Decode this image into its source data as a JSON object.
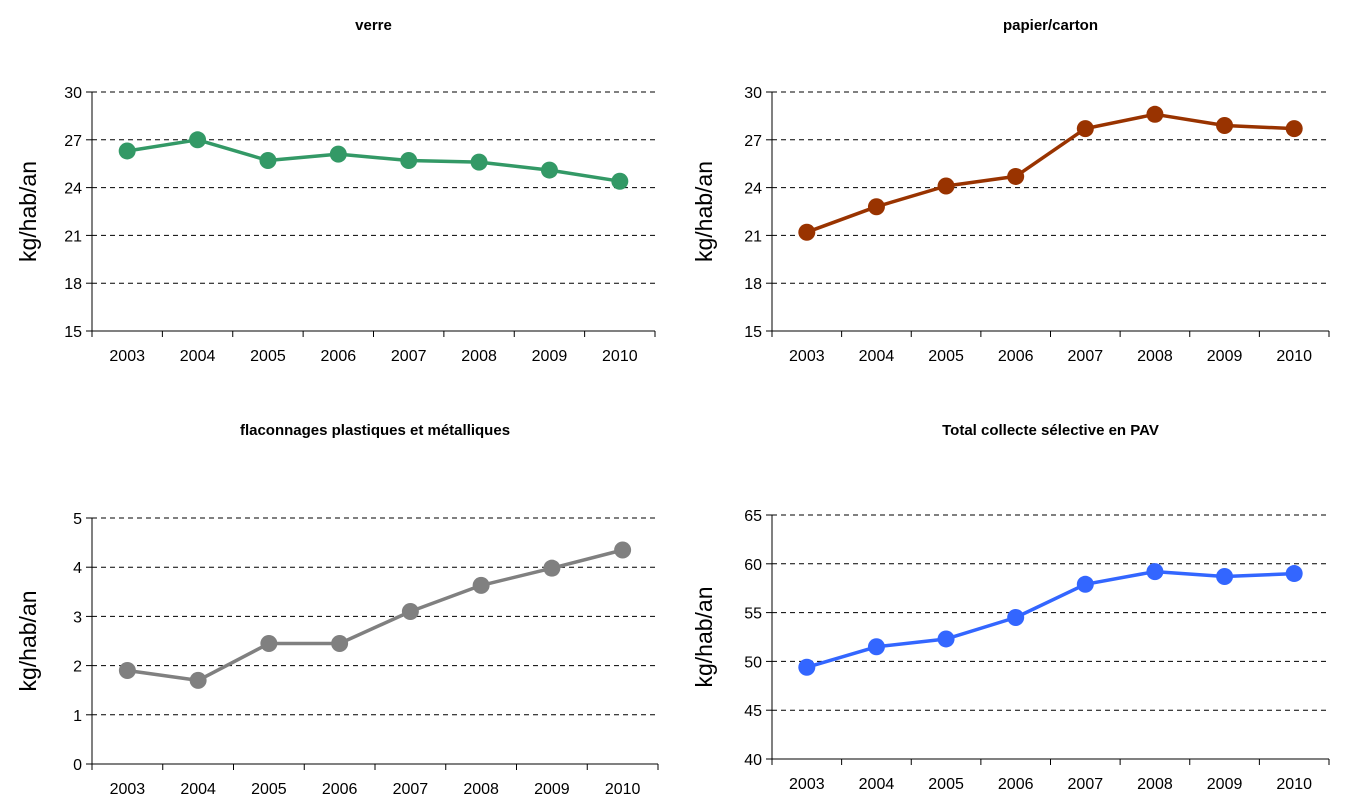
{
  "chart_data": [
    {
      "type": "line",
      "title": "verre",
      "ylabel": "kg/hab/an",
      "xlabel": "",
      "categories": [
        "2003",
        "2004",
        "2005",
        "2006",
        "2007",
        "2008",
        "2009",
        "2010"
      ],
      "values": [
        26.3,
        27.0,
        25.7,
        26.1,
        25.7,
        25.6,
        25.1,
        24.4
      ],
      "ylim": [
        15,
        30
      ],
      "yticks": [
        15,
        18,
        21,
        24,
        27,
        30
      ],
      "color": "#339966",
      "grid": "dashed-horizontal"
    },
    {
      "type": "line",
      "title": "papier/carton",
      "ylabel": "kg/hab/an",
      "xlabel": "",
      "categories": [
        "2003",
        "2004",
        "2005",
        "2006",
        "2007",
        "2008",
        "2009",
        "2010"
      ],
      "values": [
        21.2,
        22.8,
        24.1,
        24.7,
        27.7,
        28.6,
        27.9,
        27.7
      ],
      "ylim": [
        15,
        30
      ],
      "yticks": [
        15,
        18,
        21,
        24,
        27,
        30
      ],
      "color": "#993300",
      "grid": "dashed-horizontal"
    },
    {
      "type": "line",
      "title": "flaconnages plastiques et métalliques",
      "ylabel": "kg/hab/an",
      "xlabel": "",
      "categories": [
        "2003",
        "2004",
        "2005",
        "2006",
        "2007",
        "2008",
        "2009",
        "2010"
      ],
      "values": [
        1.9,
        1.7,
        2.45,
        2.45,
        3.1,
        3.63,
        3.98,
        4.35
      ],
      "ylim": [
        0,
        5
      ],
      "yticks": [
        0,
        1,
        2,
        3,
        4,
        5
      ],
      "color": "#808080",
      "grid": "dashed-horizontal"
    },
    {
      "type": "line",
      "title": "Total collecte sélective en PAV",
      "ylabel": "kg/hab/an",
      "xlabel": "",
      "categories": [
        "2003",
        "2004",
        "2005",
        "2006",
        "2007",
        "2008",
        "2009",
        "2010"
      ],
      "values": [
        49.4,
        51.5,
        52.3,
        54.5,
        57.9,
        59.2,
        58.7,
        59.0
      ],
      "ylim": [
        40,
        65
      ],
      "yticks": [
        40,
        45,
        50,
        55,
        60,
        65
      ],
      "color": "#3366ff",
      "grid": "dashed-horizontal"
    }
  ]
}
